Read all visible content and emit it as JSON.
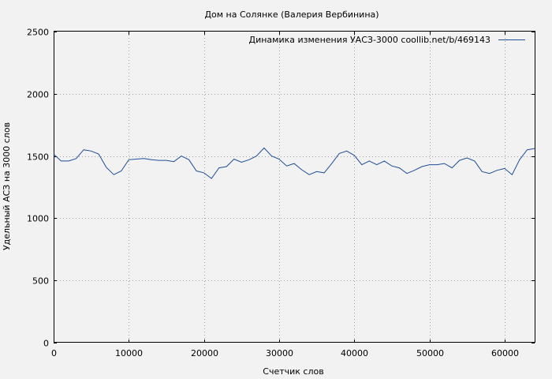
{
  "chart_data": {
    "type": "line",
    "title": "Дом на Солянке (Валерия Вербинина)",
    "xlabel": "Счетчик слов",
    "ylabel": "Удельный АСЗ на 3000 слов",
    "xlim": [
      0,
      64000
    ],
    "ylim": [
      0,
      2500
    ],
    "xticks": [
      0,
      10000,
      20000,
      30000,
      40000,
      50000,
      60000
    ],
    "yticks": [
      0,
      500,
      1000,
      1500,
      2000,
      2500
    ],
    "grid": true,
    "legend_position": "top-right",
    "series": [
      {
        "name": "Динамика изменения УАСЗ-3000  coollib.net/b/469143",
        "color": "#1f4e96",
        "x": [
          0,
          1000,
          2000,
          3000,
          4000,
          5000,
          6000,
          7000,
          8000,
          9000,
          10000,
          11000,
          12000,
          13000,
          14000,
          15000,
          16000,
          17000,
          18000,
          19000,
          20000,
          21000,
          22000,
          23000,
          24000,
          25000,
          26000,
          27000,
          28000,
          29000,
          30000,
          31000,
          32000,
          33000,
          34000,
          35000,
          36000,
          37000,
          38000,
          39000,
          40000,
          41000,
          42000,
          43000,
          44000,
          45000,
          46000,
          47000,
          48000,
          49000,
          50000,
          51000,
          52000,
          53000,
          54000,
          55000,
          56000,
          57000,
          58000,
          59000,
          60000,
          61000,
          62000,
          63000,
          64000
        ],
        "y": [
          1515,
          1460,
          1460,
          1480,
          1550,
          1540,
          1515,
          1410,
          1350,
          1380,
          1470,
          1475,
          1480,
          1470,
          1465,
          1465,
          1455,
          1500,
          1470,
          1380,
          1365,
          1320,
          1405,
          1415,
          1475,
          1450,
          1470,
          1500,
          1565,
          1500,
          1475,
          1420,
          1440,
          1390,
          1350,
          1375,
          1365,
          1440,
          1520,
          1540,
          1505,
          1430,
          1460,
          1430,
          1460,
          1420,
          1405,
          1360,
          1385,
          1415,
          1430,
          1430,
          1440,
          1405,
          1465,
          1485,
          1460,
          1375,
          1360,
          1385,
          1400,
          1350,
          1470,
          1550,
          1560
        ]
      }
    ]
  }
}
